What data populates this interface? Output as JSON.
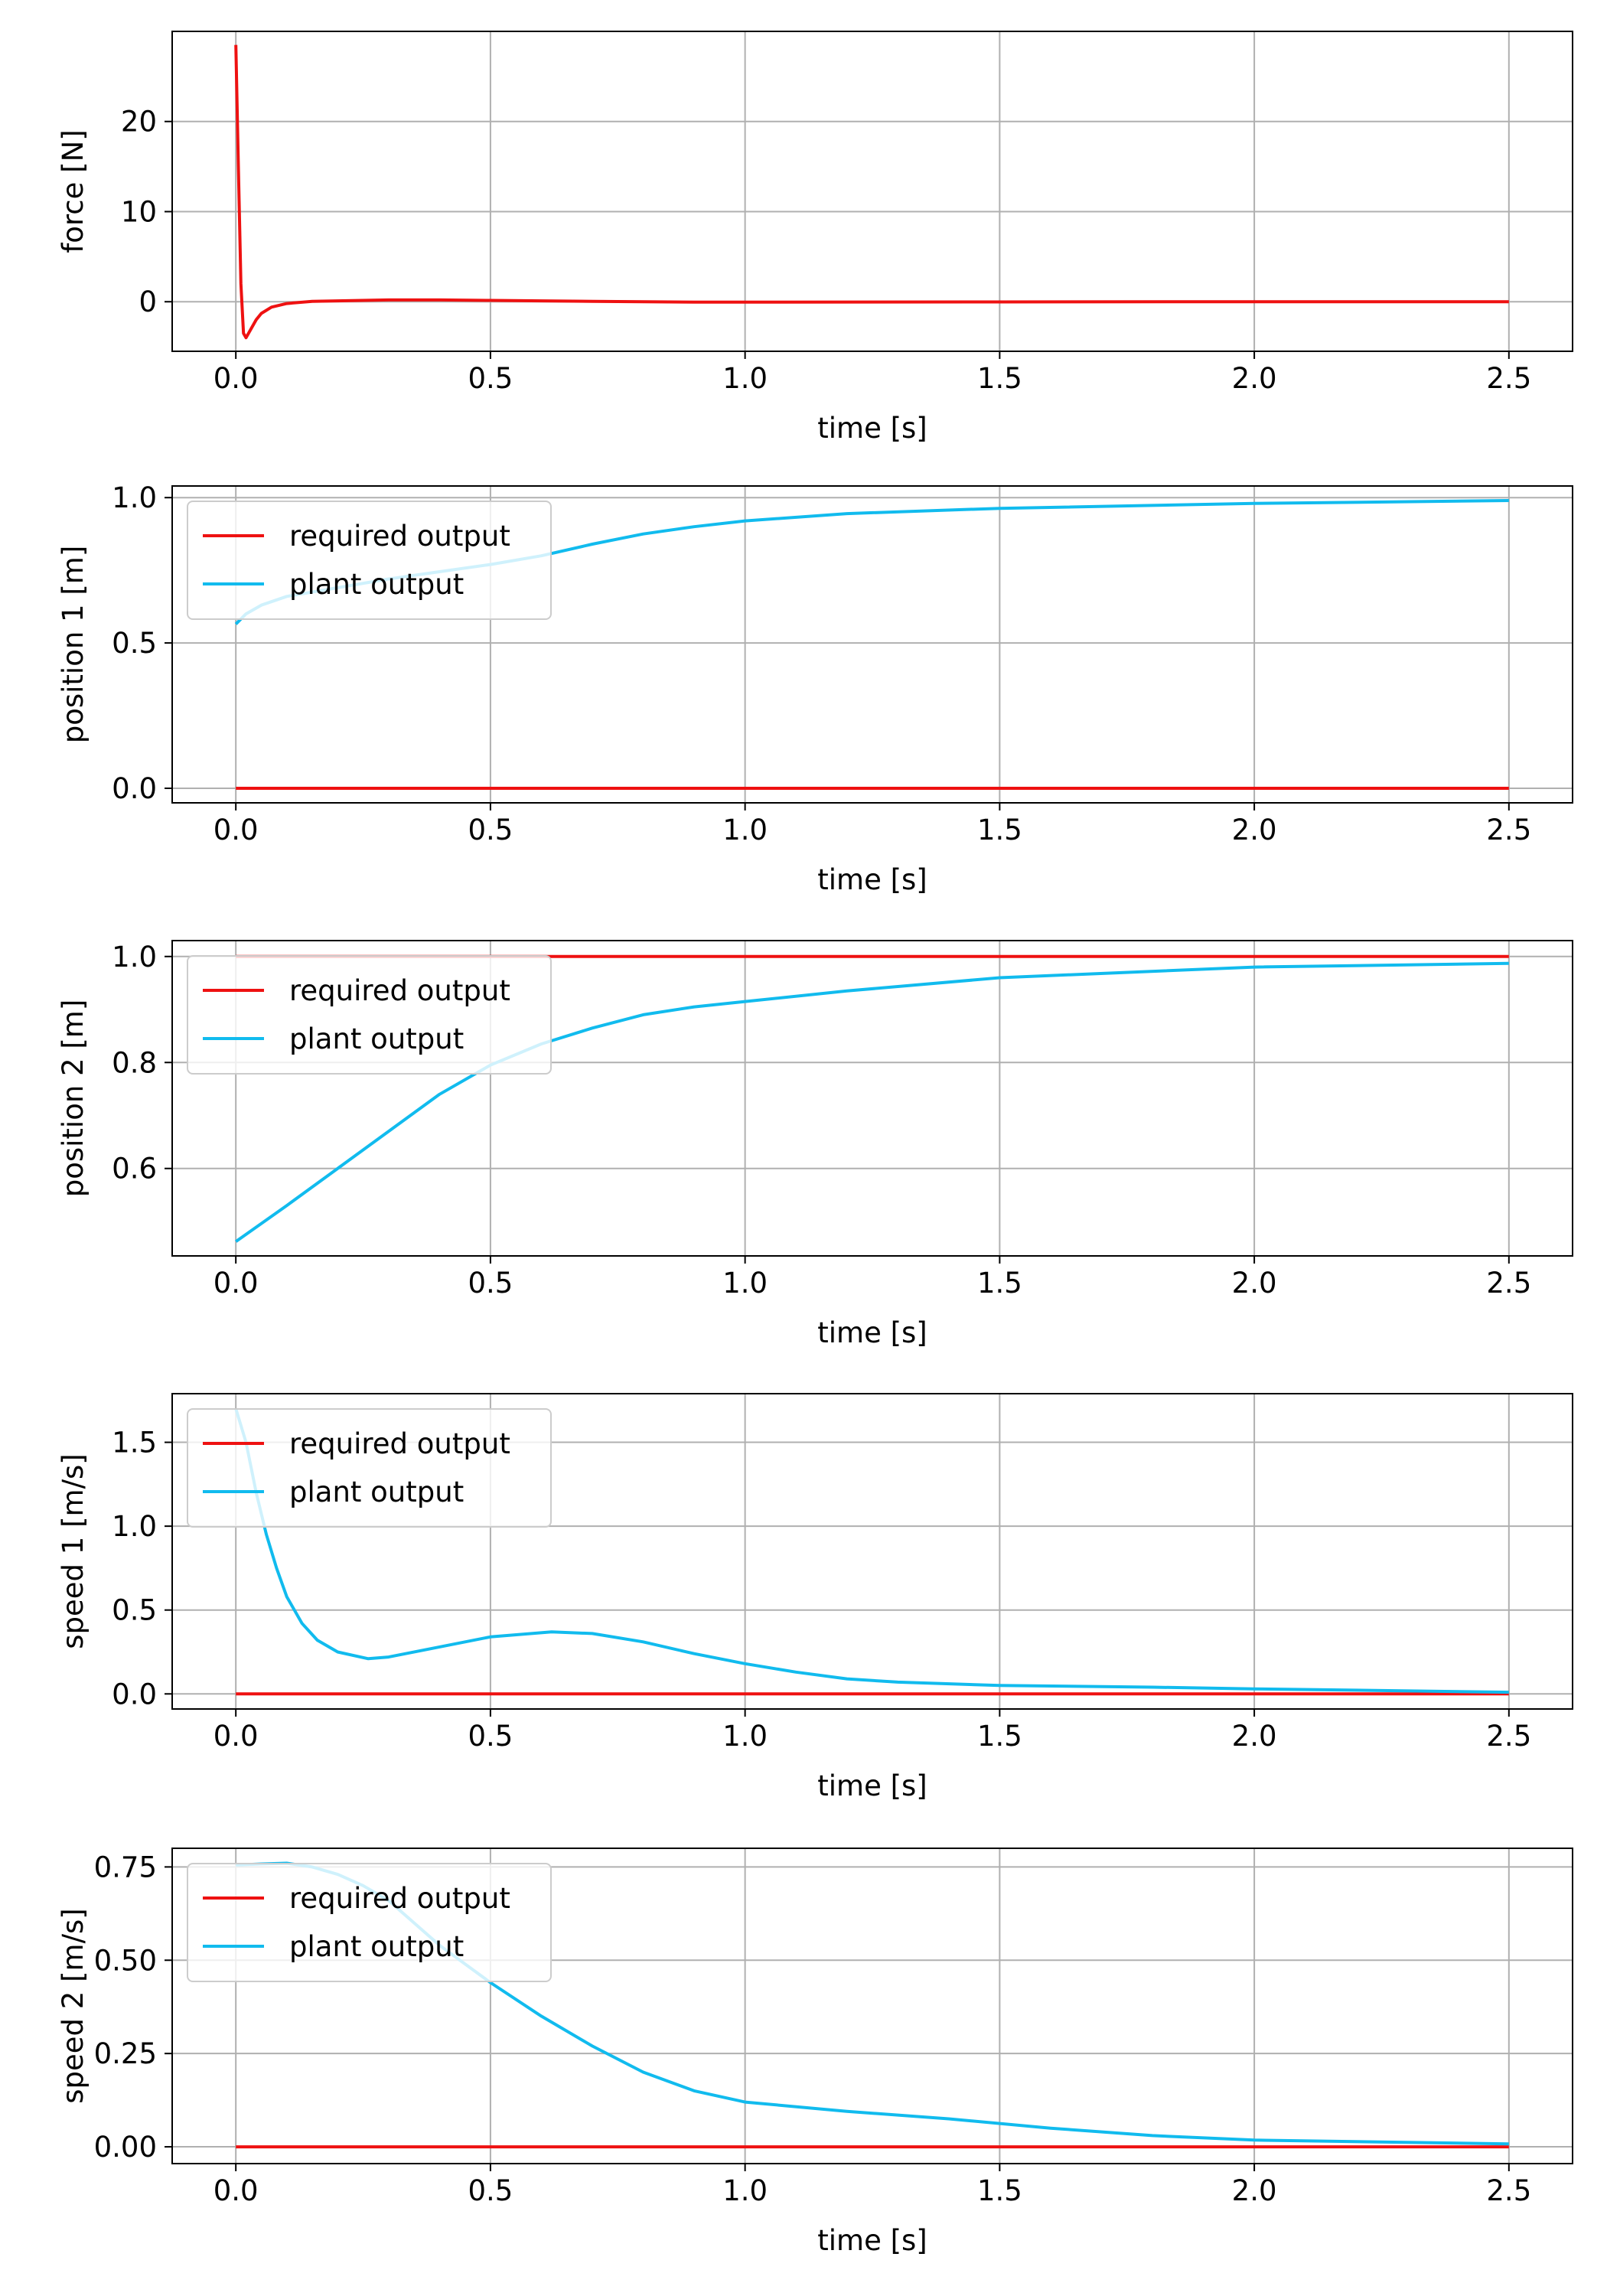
{
  "colors": {
    "required": "#ee1111",
    "plant": "#11bbee",
    "grid": "#b0b0b0",
    "axes": "#000000"
  },
  "chart_data": [
    {
      "type": "line",
      "xlabel": "time [s]",
      "ylabel": "force [N]",
      "xlim": [
        -0.125,
        2.625
      ],
      "ylim": [
        -5.5,
        30.0
      ],
      "xticks": [
        0.0,
        0.5,
        1.0,
        1.5,
        2.0,
        2.5
      ],
      "yticks": [
        0,
        10,
        20
      ],
      "yfmt": 0,
      "legend": null,
      "series": [
        {
          "color_key": "required",
          "x": [
            0.0,
            0.005,
            0.01,
            0.015,
            0.02,
            0.03,
            0.04,
            0.05,
            0.07,
            0.1,
            0.15,
            0.2,
            0.3,
            0.4,
            0.5,
            0.6,
            0.7,
            0.8,
            0.9,
            1.0,
            1.5,
            2.0,
            2.5
          ],
          "y": [
            28.5,
            15.0,
            2.0,
            -3.5,
            -4.0,
            -3.0,
            -2.0,
            -1.3,
            -0.6,
            -0.2,
            0.05,
            0.1,
            0.2,
            0.2,
            0.15,
            0.1,
            0.05,
            0.0,
            -0.05,
            -0.05,
            -0.02,
            0.0,
            0.0
          ]
        }
      ]
    },
    {
      "type": "line",
      "xlabel": "time [s]",
      "ylabel": "position 1 [m]",
      "xlim": [
        -0.125,
        2.625
      ],
      "ylim": [
        -0.05,
        1.04
      ],
      "xticks": [
        0.0,
        0.5,
        1.0,
        1.5,
        2.0,
        2.5
      ],
      "yticks": [
        0.0,
        0.5,
        1.0
      ],
      "yfmt": 1,
      "legend": "top-left",
      "series": [
        {
          "name": "required output",
          "color_key": "required",
          "x": [
            0.0,
            2.5
          ],
          "y": [
            0.0,
            0.0
          ]
        },
        {
          "name": "plant output",
          "color_key": "plant",
          "x": [
            0.0,
            0.02,
            0.05,
            0.1,
            0.2,
            0.3,
            0.4,
            0.5,
            0.6,
            0.7,
            0.8,
            0.9,
            1.0,
            1.2,
            1.5,
            2.0,
            2.5
          ],
          "y": [
            0.565,
            0.6,
            0.63,
            0.66,
            0.69,
            0.72,
            0.745,
            0.77,
            0.8,
            0.84,
            0.875,
            0.9,
            0.92,
            0.945,
            0.963,
            0.98,
            0.99
          ]
        }
      ]
    },
    {
      "type": "line",
      "xlabel": "time [s]",
      "ylabel": "position 2 [m]",
      "xlim": [
        -0.125,
        2.625
      ],
      "ylim": [
        0.435,
        1.03
      ],
      "xticks": [
        0.0,
        0.5,
        1.0,
        1.5,
        2.0,
        2.5
      ],
      "yticks": [
        0.6,
        0.8,
        1.0
      ],
      "yfmt": 1,
      "legend": "top-left",
      "series": [
        {
          "name": "required output",
          "color_key": "required",
          "x": [
            0.0,
            2.5
          ],
          "y": [
            1.0,
            1.0
          ]
        },
        {
          "name": "plant output",
          "color_key": "plant",
          "x": [
            0.0,
            0.1,
            0.2,
            0.3,
            0.4,
            0.5,
            0.6,
            0.7,
            0.8,
            0.9,
            1.0,
            1.2,
            1.5,
            2.0,
            2.5
          ],
          "y": [
            0.462,
            0.53,
            0.6,
            0.67,
            0.74,
            0.795,
            0.835,
            0.865,
            0.89,
            0.905,
            0.915,
            0.935,
            0.96,
            0.98,
            0.987
          ]
        }
      ]
    },
    {
      "type": "line",
      "xlabel": "time [s]",
      "ylabel": "speed 1 [m/s]",
      "xlim": [
        -0.125,
        2.625
      ],
      "ylim": [
        -0.09,
        1.79
      ],
      "xticks": [
        0.0,
        0.5,
        1.0,
        1.5,
        2.0,
        2.5
      ],
      "yticks": [
        0.0,
        0.5,
        1.0,
        1.5
      ],
      "yfmt": 1,
      "legend": "top-left",
      "series": [
        {
          "name": "required output",
          "color_key": "required",
          "x": [
            0.0,
            2.5
          ],
          "y": [
            0.0,
            0.0
          ]
        },
        {
          "name": "plant output",
          "color_key": "plant",
          "x": [
            0.0,
            0.02,
            0.04,
            0.06,
            0.08,
            0.1,
            0.13,
            0.16,
            0.2,
            0.26,
            0.3,
            0.4,
            0.5,
            0.62,
            0.7,
            0.8,
            0.9,
            1.0,
            1.1,
            1.2,
            1.3,
            1.5,
            1.8,
            2.0,
            2.5
          ],
          "y": [
            1.7,
            1.5,
            1.2,
            0.95,
            0.75,
            0.58,
            0.42,
            0.32,
            0.25,
            0.21,
            0.22,
            0.28,
            0.34,
            0.37,
            0.36,
            0.31,
            0.24,
            0.18,
            0.13,
            0.09,
            0.07,
            0.05,
            0.04,
            0.03,
            0.01
          ]
        }
      ]
    },
    {
      "type": "line",
      "xlabel": "time [s]",
      "ylabel": "speed 2 [m/s]",
      "xlim": [
        -0.125,
        2.625
      ],
      "ylim": [
        -0.045,
        0.8
      ],
      "xticks": [
        0.0,
        0.5,
        1.0,
        1.5,
        2.0,
        2.5
      ],
      "yticks": [
        0.0,
        0.25,
        0.5,
        0.75
      ],
      "yfmt": 2,
      "legend": "top-left",
      "series": [
        {
          "name": "required output",
          "color_key": "required",
          "x": [
            0.0,
            2.5
          ],
          "y": [
            0.0,
            0.0
          ]
        },
        {
          "name": "plant output",
          "color_key": "plant",
          "x": [
            0.0,
            0.05,
            0.1,
            0.15,
            0.2,
            0.25,
            0.3,
            0.35,
            0.4,
            0.45,
            0.5,
            0.6,
            0.7,
            0.8,
            0.9,
            1.0,
            1.2,
            1.4,
            1.6,
            1.8,
            2.0,
            2.5
          ],
          "y": [
            0.755,
            0.758,
            0.76,
            0.75,
            0.73,
            0.7,
            0.66,
            0.6,
            0.54,
            0.49,
            0.44,
            0.35,
            0.27,
            0.2,
            0.15,
            0.12,
            0.095,
            0.075,
            0.05,
            0.03,
            0.018,
            0.008
          ]
        }
      ]
    }
  ]
}
